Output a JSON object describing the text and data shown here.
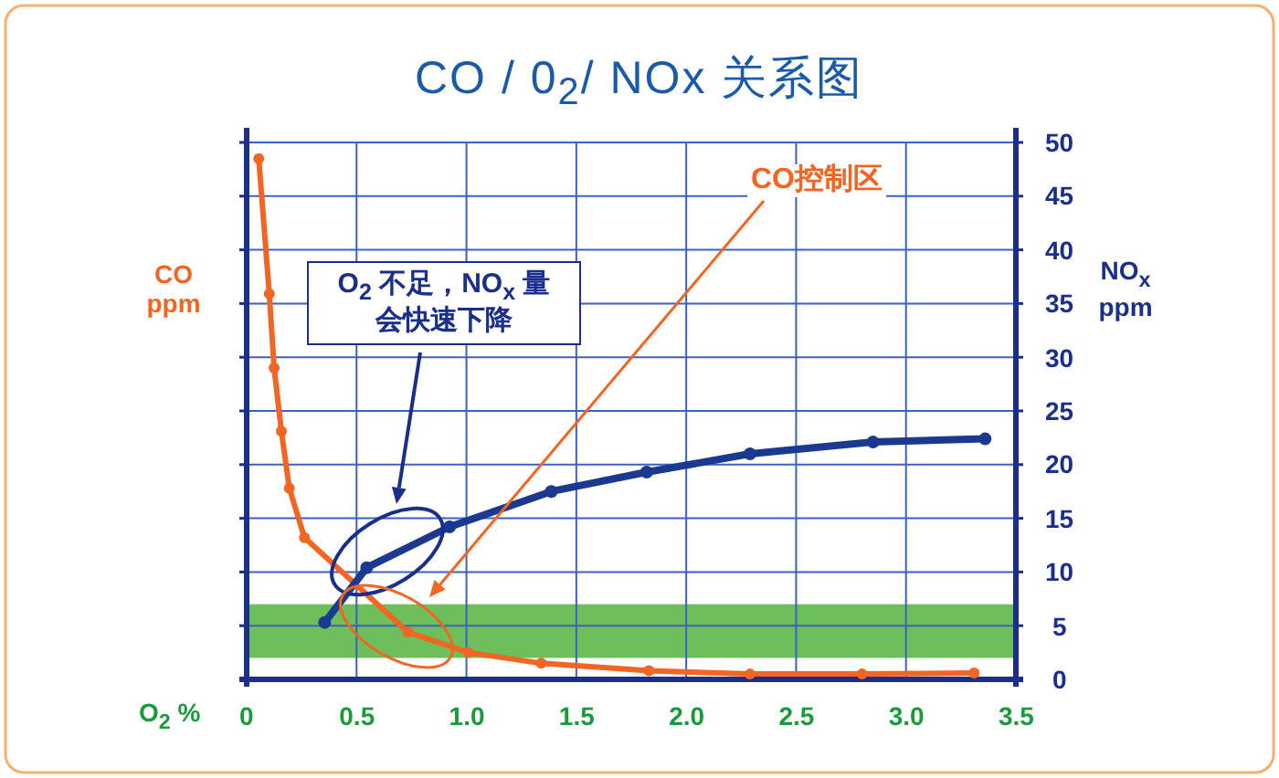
{
  "chart_data": {
    "type": "line",
    "title": "CO / 0$_{2}$/ NOx 关系图",
    "xlabel": "O$_{2}$ %",
    "ylabel": "CO ppm",
    "y2label": "NO$_{x}$ ppm",
    "xlim": [
      0,
      3.5
    ],
    "xticks": [
      0,
      0.5,
      {
        "value": 1,
        "label": "1.0"
      },
      1.5,
      {
        "value": 2,
        "label": "2.0"
      },
      2.5,
      {
        "value": 3,
        "label": "3.0"
      },
      3.5
    ],
    "y2lim": [
      0,
      50
    ],
    "y2ticks": [
      0,
      5,
      10,
      15,
      20,
      25,
      30,
      35,
      40,
      45,
      50
    ],
    "grid": true,
    "marker": "circle",
    "line_style": "solid",
    "series": [
      {
        "color": "#f26522",
        "axis": "y2",
        "x": [
          0.055,
          0.103,
          0.125,
          0.158,
          0.194,
          0.263,
          0.734,
          1.01,
          1.34,
          1.83,
          2.29,
          2.8,
          3.31
        ],
        "values": [
          48.5,
          35.9,
          29.0,
          23.1,
          17.8,
          13.2,
          4.4,
          2.5,
          1.5,
          0.8,
          0.5,
          0.5,
          0.6
        ]
      },
      {
        "color": "#1b3a8f",
        "axis": "y2",
        "x": [
          0.355,
          0.546,
          0.923,
          1.386,
          1.82,
          2.29,
          2.85,
          3.36
        ],
        "values": [
          5.3,
          10.4,
          14.2,
          17.5,
          19.3,
          21.0,
          22.1,
          22.4
        ]
      }
    ],
    "bands": [
      {
        "axis": "y2",
        "from": 2,
        "to": 7,
        "color": "#6cbf5a"
      }
    ],
    "annotations": [
      "O$_{2}$ 不足，NO$_{x}$ 量会快速下降",
      "CO控制区"
    ]
  }
}
